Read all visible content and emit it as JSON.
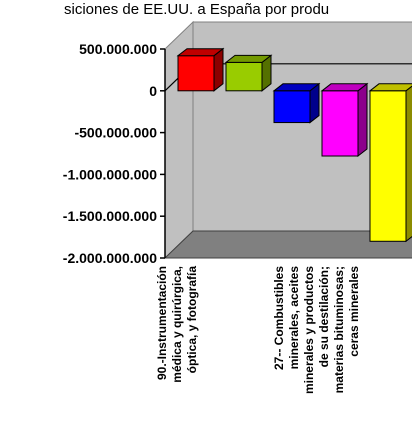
{
  "chart_data": {
    "type": "bar",
    "title": "siciones de EE.UU. a España por produ",
    "xlabel": "",
    "ylabel": "",
    "ylim": [
      -2000000000,
      500000000
    ],
    "yticks": [
      500000000,
      0,
      -500000000,
      -1000000000,
      -1500000000,
      -2000000000
    ],
    "ytick_labels": [
      "500.000.000",
      "0",
      "-500.000.000",
      "-1.000.000.000",
      "-1.500.000.000",
      "-2.000.000.000"
    ],
    "grid": false,
    "legend": "none",
    "bar_style": "3d",
    "categories": [
      "90.-Instrumentación médica y quirúrgica, óptica, y fotografía",
      "",
      "",
      "27-- Combustibles minerales, aceites minerales y productos de su destilación; materias bituminosas; ceras minerales",
      ""
    ],
    "category_label_lines": [
      [
        "90.-Instrumentación",
        "médica y quirúrgica,",
        "óptica, y fotografía"
      ],
      [
        "27-- Combustibles",
        "minerales, aceites",
        "minerales y productos",
        "de su destilación;",
        "materias bituminosas;",
        "ceras minerales"
      ]
    ],
    "values": [
      420000000,
      340000000,
      -380000000,
      -780000000,
      -1800000000
    ],
    "colors": [
      "#ff0000",
      "#99cc00",
      "#0000ff",
      "#ff00ff",
      "#ffff00"
    ]
  }
}
